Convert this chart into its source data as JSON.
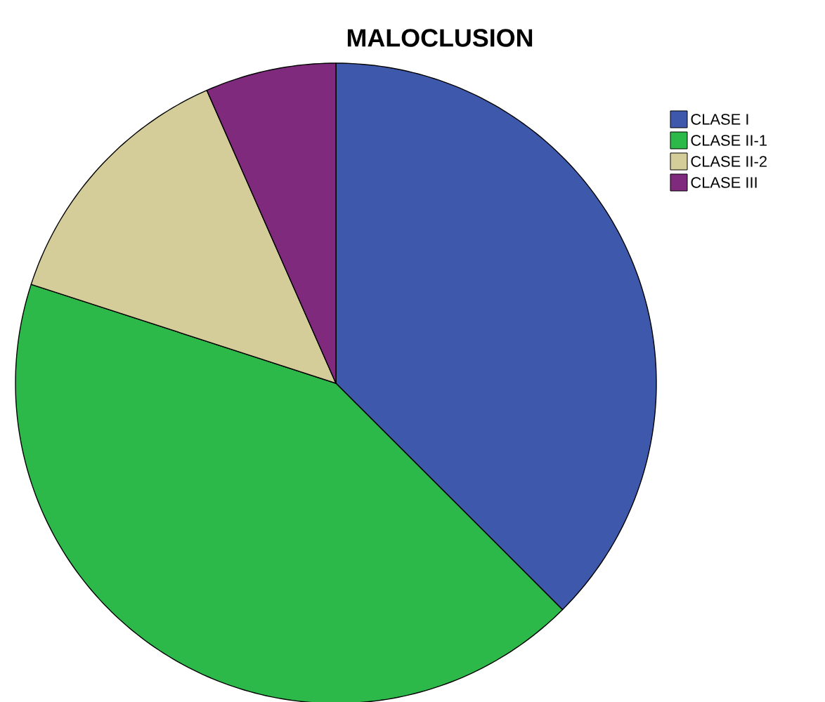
{
  "chart_data": {
    "type": "pie",
    "title": "MALOCLUSION",
    "categories": [
      "CLASE I",
      "CLASE II-1",
      "CLASE II-2",
      "CLASE III"
    ],
    "values": [
      37.5,
      42.5,
      13.4,
      6.6
    ],
    "colors": [
      "#3e58ac",
      "#2db84a",
      "#d4cc99",
      "#7f2a7d"
    ],
    "legend": "top right"
  }
}
